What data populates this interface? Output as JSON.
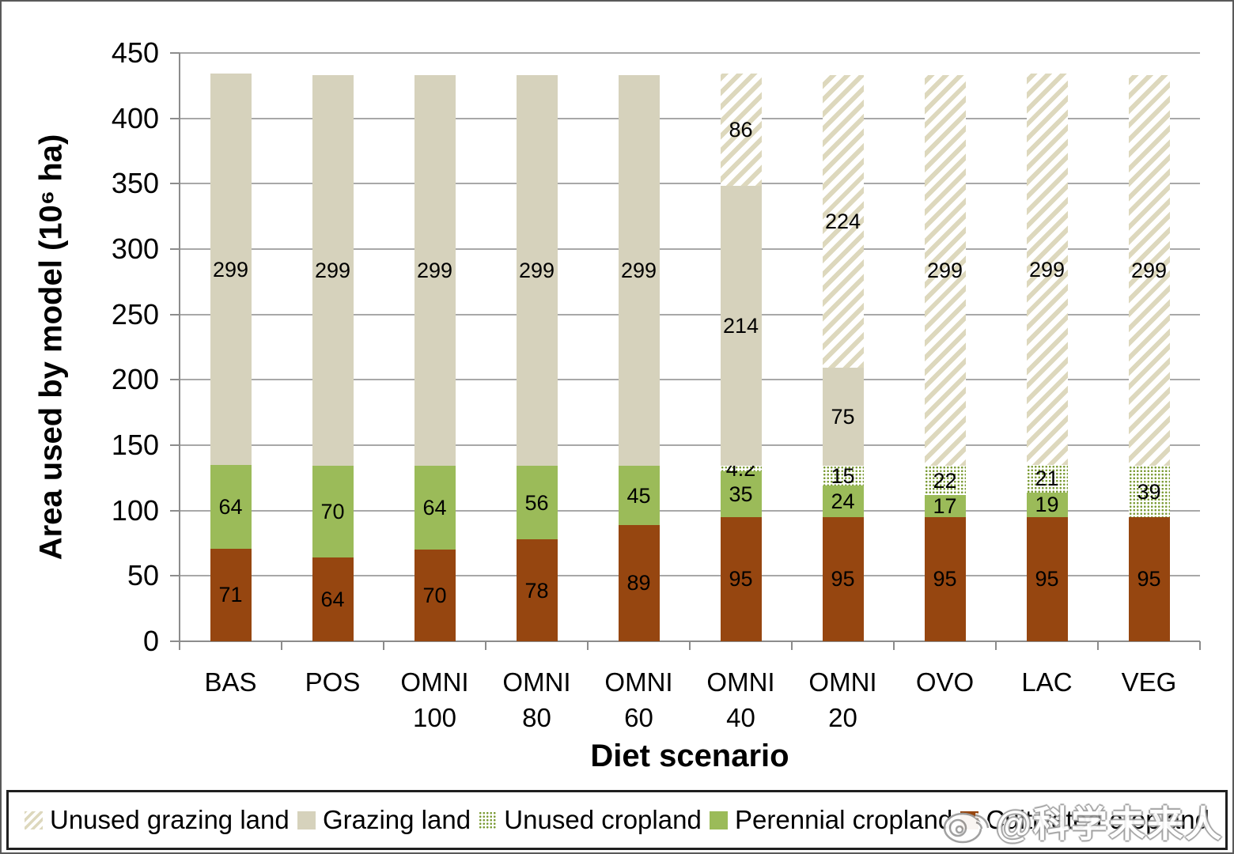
{
  "watermark": {
    "text": "@科学未来人",
    "icon": "weibo-logo"
  },
  "chart_data": {
    "type": "bar",
    "stacked": true,
    "title": "",
    "xlabel": "Diet scenario",
    "ylabel": "Area used by model (10⁶ ha)",
    "ylim": [
      0,
      450
    ],
    "ytick_step": 50,
    "grid": true,
    "legend_position": "bottom",
    "categories": [
      "BAS",
      "POS",
      "OMNI\n100",
      "OMNI\n80",
      "OMNI\n60",
      "OMNI\n40",
      "OMNI\n20",
      "OVO",
      "LAC",
      "VEG"
    ],
    "series": [
      {
        "name": "Cultivated cropland",
        "pattern": "solid",
        "color": "#964610",
        "values": [
          71,
          64,
          70,
          78,
          89,
          95,
          95,
          95,
          95,
          95
        ]
      },
      {
        "name": "Perennial cropland",
        "pattern": "solid",
        "color": "#9bbb59",
        "values": [
          64,
          70,
          64,
          56,
          45,
          35,
          24,
          17,
          19,
          0
        ]
      },
      {
        "name": "Unused cropland",
        "pattern": "dots",
        "color": "#7a9a33",
        "values": [
          0,
          0,
          0,
          0,
          0,
          4.2,
          15,
          22,
          21,
          39
        ]
      },
      {
        "name": "Grazing land",
        "pattern": "solid",
        "color": "#d6d2bc",
        "values": [
          299,
          299,
          299,
          299,
          299,
          214,
          75,
          0,
          0,
          0
        ]
      },
      {
        "name": "Unused grazing land",
        "pattern": "hatch",
        "color": "#ddd8bd",
        "values": [
          0,
          0,
          0,
          0,
          0,
          86,
          224,
          299,
          299,
          299
        ]
      }
    ],
    "legend": [
      "Unused grazing land",
      "Grazing land",
      "Unused cropland",
      "Perennial cropland",
      "Cultivated cropland"
    ]
  }
}
